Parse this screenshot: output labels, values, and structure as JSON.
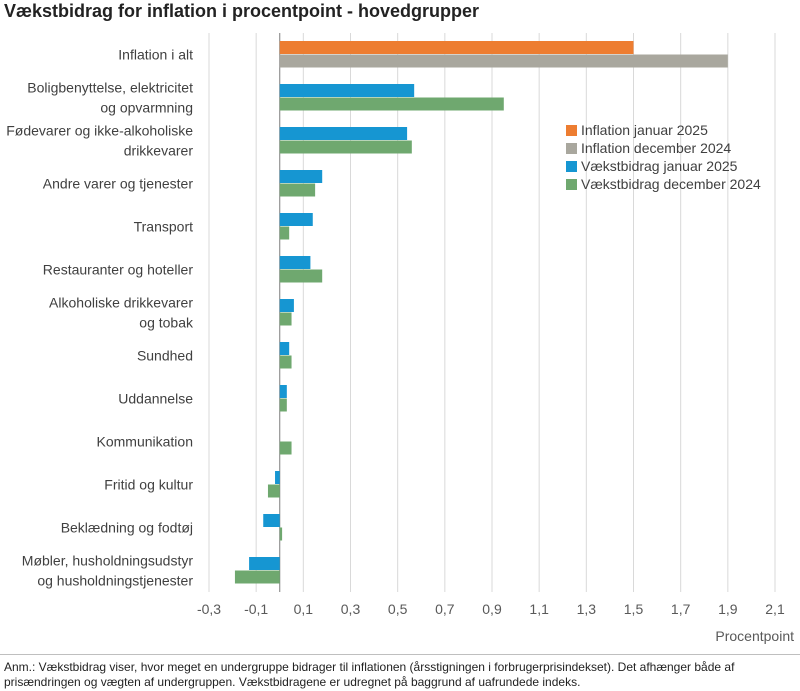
{
  "title": "Vækstbidrag for inflation i procentpoint - hovedgrupper",
  "note": "Anm.: Vækstbidrag viser, hvor meget en undergruppe bidrager til inflationen (årsstigningen i forbrugerprisindekset). Det afhænger både af prisændringen og vægten af undergruppen. Vækstbidragene er udregnet på baggrund af uafrundede indeks.",
  "chart_data": {
    "type": "bar",
    "orientation": "horizontal",
    "categories": [
      [
        "Inflation i alt"
      ],
      [
        "Boligbenyttelse, elektricitet",
        "og opvarmning"
      ],
      [
        "Fødevarer og ikke-alkoholiske",
        "drikkevarer"
      ],
      [
        "Andre varer og tjenester"
      ],
      [
        "Transport"
      ],
      [
        "Restauranter og hoteller"
      ],
      [
        "Alkoholiske drikkevarer",
        "og tobak"
      ],
      [
        "Sundhed"
      ],
      [
        "Uddannelse"
      ],
      [
        "Kommunikation"
      ],
      [
        "Fritid og kultur"
      ],
      [
        "Beklædning og fodtøj"
      ],
      [
        "Møbler, husholdningsudstyr",
        "og husholdningstjenester"
      ]
    ],
    "series": [
      {
        "name": "Inflation januar 2025",
        "color": "#ED7D31",
        "values": [
          1.5,
          null,
          null,
          null,
          null,
          null,
          null,
          null,
          null,
          null,
          null,
          null,
          null
        ]
      },
      {
        "name": "Inflation december 2024",
        "color": "#A9A79E",
        "values": [
          1.9,
          null,
          null,
          null,
          null,
          null,
          null,
          null,
          null,
          null,
          null,
          null,
          null
        ]
      },
      {
        "name": "Vækstbidrag januar 2025",
        "color": "#1696D2",
        "values": [
          null,
          0.57,
          0.54,
          0.18,
          0.14,
          0.13,
          0.06,
          0.04,
          0.03,
          0.0,
          -0.02,
          -0.07,
          -0.13
        ]
      },
      {
        "name": "Vækstbidrag december 2024",
        "color": "#6FA86F",
        "values": [
          null,
          0.95,
          0.56,
          0.15,
          0.04,
          0.18,
          0.05,
          0.05,
          0.03,
          0.05,
          -0.05,
          0.01,
          -0.19
        ]
      }
    ],
    "xlim": [
      -0.3,
      2.1
    ],
    "xticks": [
      "-0,3",
      "-0,1",
      "0,1",
      "0,3",
      "0,5",
      "0,7",
      "0,9",
      "1,1",
      "1,3",
      "1,5",
      "1,7",
      "1,9",
      "2,1"
    ],
    "xlabel": "Procentpoint",
    "grid": true,
    "legend": "right"
  }
}
